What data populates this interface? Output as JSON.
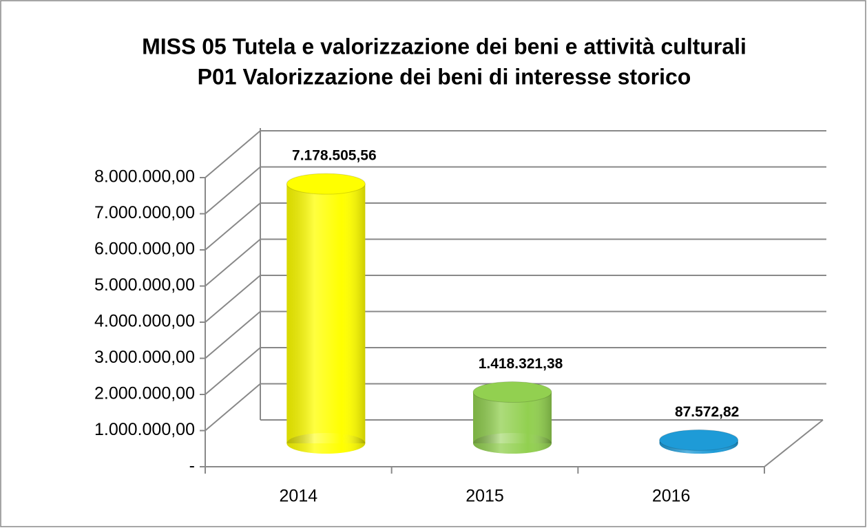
{
  "chart_data": {
    "type": "bar3d",
    "title": "MISS 05 Tutela e valorizzazione dei beni e attività culturali",
    "subtitle": "P01 Valorizzazione dei beni di interesse storico",
    "categories": [
      "2014",
      "2015",
      "2016"
    ],
    "values": [
      7178505.56,
      1418321.38,
      87572.82
    ],
    "value_labels": [
      "7.178.505,56",
      "1.418.321,38",
      "87.572,82"
    ],
    "colors": [
      "#ffff00",
      "#92d050",
      "#1e9bd7"
    ],
    "ylim": [
      0,
      8000000
    ],
    "yticks": [
      {
        "value": 0,
        "label": "-"
      },
      {
        "value": 1000000,
        "label": "1.000.000,00"
      },
      {
        "value": 2000000,
        "label": "2.000.000,00"
      },
      {
        "value": 3000000,
        "label": "3.000.000,00"
      },
      {
        "value": 4000000,
        "label": "4.000.000,00"
      },
      {
        "value": 5000000,
        "label": "5.000.000,00"
      },
      {
        "value": 6000000,
        "label": "6.000.000,00"
      },
      {
        "value": 7000000,
        "label": "7.000.000,00"
      },
      {
        "value": 8000000,
        "label": "8.000.000,00"
      }
    ],
    "grid": true
  }
}
